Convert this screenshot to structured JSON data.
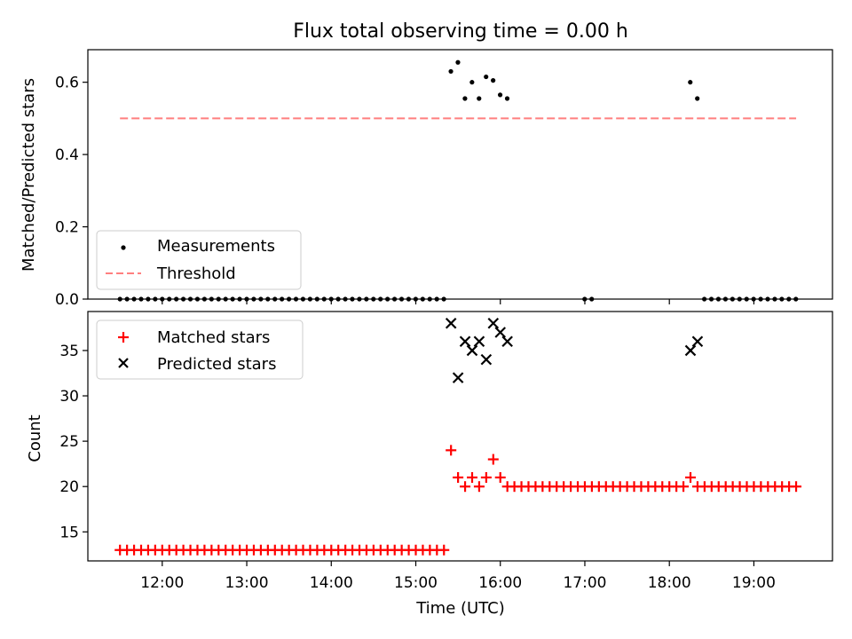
{
  "chart_data": [
    {
      "type": "scatter",
      "title": "Flux total observing time = 0.00 h",
      "xlabel": "",
      "ylabel": "Matched/Predicted stars",
      "ylim": [
        0.0,
        0.69
      ],
      "yticks": [
        0.0,
        0.2,
        0.4,
        0.6
      ],
      "ytick_labels": [
        "0.0",
        "0.2",
        "0.4",
        "0.6"
      ],
      "xlim_hours": [
        11.12,
        19.93
      ],
      "legend_position": "lower-left",
      "grid": false,
      "series": [
        {
          "name": "Measurements",
          "marker": "dot",
          "color": "#000000",
          "points": {
            "x_start": 11.5,
            "x_step": 0.0833,
            "count": 97,
            "y_default": 0.0,
            "overrides": {
              "47": 0.63,
              "48": 0.655,
              "49": 0.555,
              "50": 0.6,
              "51": 0.555,
              "52": 0.615,
              "53": 0.605,
              "54": 0.565,
              "55": 0.555,
              "66": 0.0,
              "67": 0.0,
              "81": 0.6,
              "82": 0.555
            },
            "gaps": [
              56,
              57,
              58,
              59,
              60,
              61,
              62,
              63,
              64,
              65,
              66,
              67,
              68,
              69,
              70,
              71,
              72,
              73,
              74,
              75,
              76,
              77,
              78,
              79,
              80
            ]
          }
        },
        {
          "name": "Threshold",
          "style": "dashed",
          "color": "#ff7f7f",
          "x": [
            "11:30",
            "19:30"
          ],
          "y": [
            0.5,
            0.5
          ]
        }
      ]
    },
    {
      "type": "scatter",
      "xlabel": "Time (UTC)",
      "ylabel": "Count",
      "ylim": [
        11.8,
        39.3
      ],
      "yticks": [
        15,
        20,
        25,
        30,
        35
      ],
      "ytick_labels": [
        "15",
        "20",
        "25",
        "30",
        "35"
      ],
      "xticks": [
        "12:00",
        "13:00",
        "14:00",
        "15:00",
        "16:00",
        "17:00",
        "18:00",
        "19:00"
      ],
      "xlim_hours": [
        11.12,
        19.93
      ],
      "legend_position": "upper-left",
      "grid": false,
      "series": [
        {
          "name": "Matched stars",
          "marker": "plus",
          "color": "#ff0000",
          "points_rule": "x from 11:30 every 5 min to 19:30; y = 13 before 15:25, 20 after 16:05 except listed",
          "overrides": {
            "15:25": 24,
            "15:30": 21,
            "15:35": 20,
            "15:40": 21,
            "15:45": 20,
            "15:50": 21,
            "15:55": 23,
            "16:00": 21,
            "18:15": 21
          }
        },
        {
          "name": "Predicted stars",
          "marker": "x",
          "color": "#000000",
          "x": [
            "15:25",
            "15:30",
            "15:35",
            "15:40",
            "15:45",
            "15:50",
            "15:55",
            "16:00",
            "16:05",
            "18:15",
            "18:20"
          ],
          "y": [
            38,
            32,
            36,
            35,
            36,
            34,
            38,
            37,
            36,
            35,
            36
          ]
        }
      ]
    }
  ]
}
